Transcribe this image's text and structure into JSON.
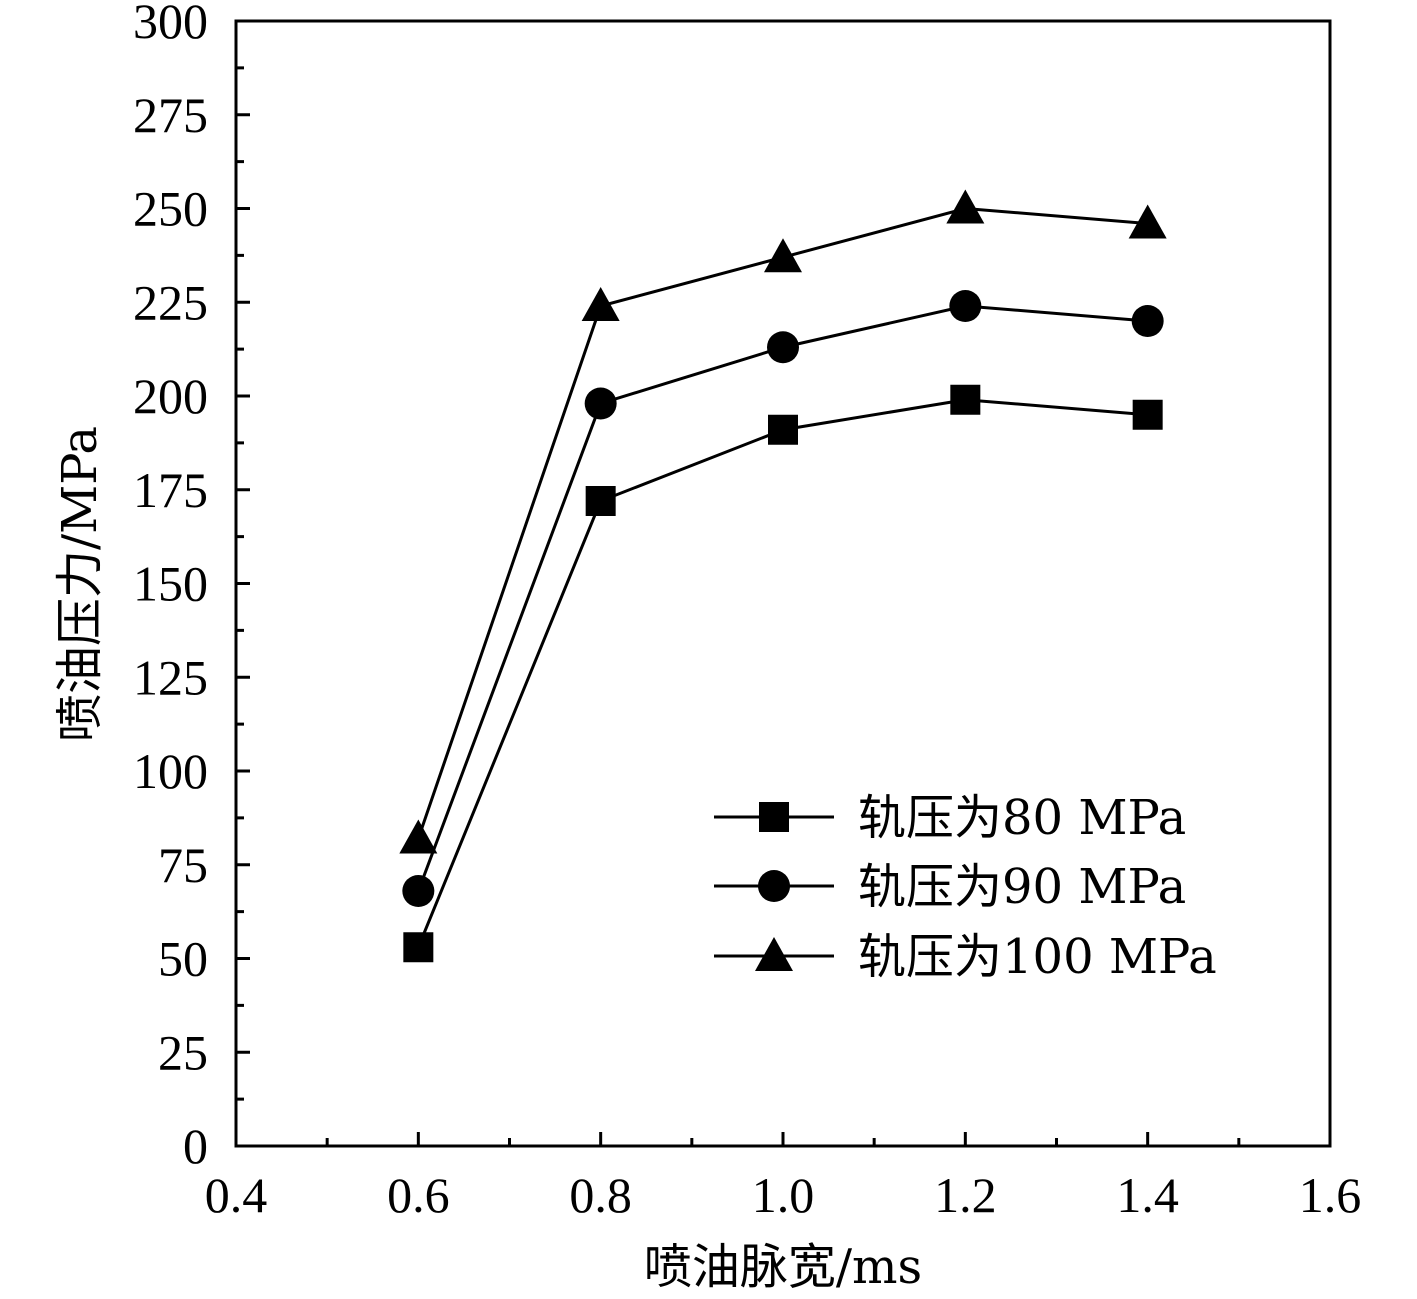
{
  "chart_data": {
    "type": "line",
    "title": "",
    "xlabel": "喷油脉宽/ms",
    "ylabel": "喷油压力/MPa",
    "xlim": [
      0.4,
      1.6
    ],
    "ylim": [
      0,
      300
    ],
    "x_ticks": [
      "0.4",
      "0.6",
      "0.8",
      "1.0",
      "1.2",
      "1.4",
      "1.6"
    ],
    "y_ticks": [
      "0",
      "25",
      "50",
      "75",
      "100",
      "125",
      "150",
      "175",
      "200",
      "225",
      "250",
      "275",
      "300"
    ],
    "x": [
      0.6,
      0.8,
      1.0,
      1.2,
      1.4
    ],
    "series": [
      {
        "name": "轨压为80 MPa",
        "marker": "square",
        "values": [
          53,
          172,
          191,
          199,
          195
        ]
      },
      {
        "name": "轨压为90 MPa",
        "marker": "circle",
        "values": [
          68,
          198,
          213,
          224,
          220
        ]
      },
      {
        "name": "轨压为100 MPa",
        "marker": "triangle",
        "values": [
          82,
          224,
          237,
          250,
          246
        ]
      }
    ],
    "legend_position": "bottom-right",
    "grid": false,
    "color": "#000000"
  }
}
